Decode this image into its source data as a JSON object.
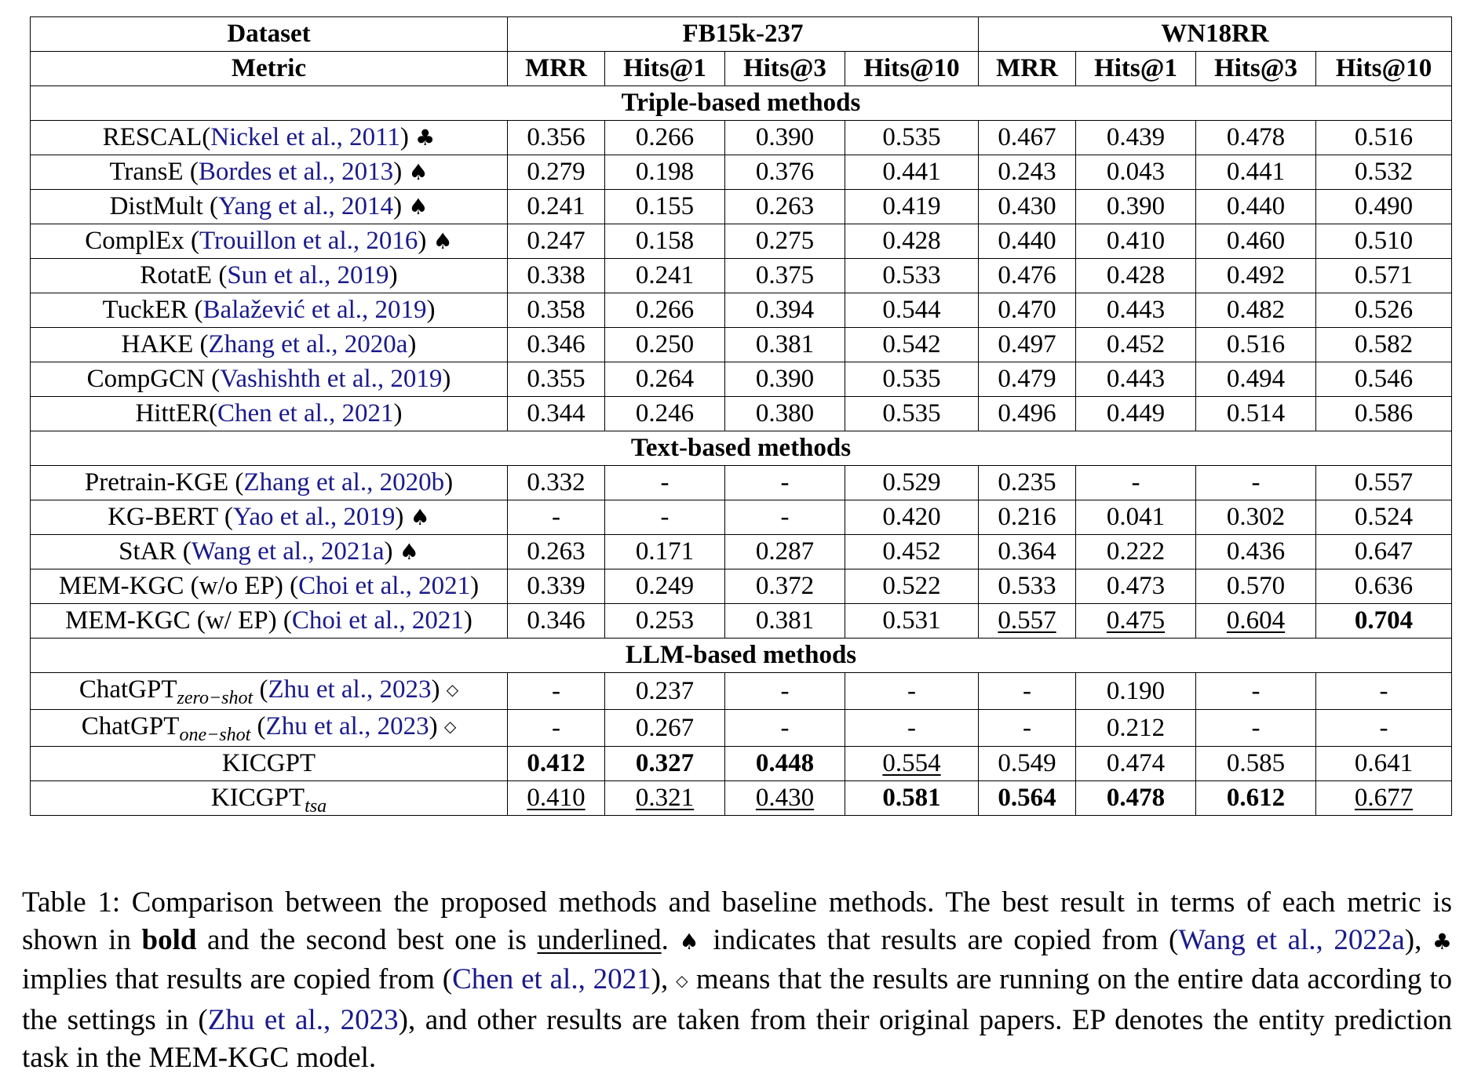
{
  "header": {
    "dataset_label": "Dataset",
    "metric_label": "Metric",
    "groups": [
      "FB15k-237",
      "WN18RR"
    ],
    "metrics": [
      "MRR",
      "Hits@1",
      "Hits@3",
      "Hits@10",
      "MRR",
      "Hits@1",
      "Hits@3",
      "Hits@10"
    ]
  },
  "sections": [
    {
      "title": "Triple-based methods",
      "rows": [
        {
          "name": "RESCAL(",
          "cite": "Nickel et al., 2011",
          "close": ")",
          "sup": "",
          "mark": "♣",
          "values": [
            {
              "v": "0.356"
            },
            {
              "v": "0.266"
            },
            {
              "v": "0.390"
            },
            {
              "v": "0.535"
            },
            {
              "v": "0.467"
            },
            {
              "v": "0.439"
            },
            {
              "v": "0.478"
            },
            {
              "v": "0.516"
            }
          ]
        },
        {
          "name": "TransE (",
          "cite": "Bordes et al., 2013",
          "close": ")",
          "sup": "",
          "mark": "♠",
          "values": [
            {
              "v": "0.279"
            },
            {
              "v": "0.198"
            },
            {
              "v": "0.376"
            },
            {
              "v": "0.441"
            },
            {
              "v": "0.243"
            },
            {
              "v": "0.043"
            },
            {
              "v": "0.441"
            },
            {
              "v": "0.532"
            }
          ]
        },
        {
          "name": "DistMult (",
          "cite": "Yang et al., 2014",
          "close": ")",
          "sup": "",
          "mark": "♠",
          "values": [
            {
              "v": "0.241"
            },
            {
              "v": "0.155"
            },
            {
              "v": "0.263"
            },
            {
              "v": "0.419"
            },
            {
              "v": "0.430"
            },
            {
              "v": "0.390"
            },
            {
              "v": "0.440"
            },
            {
              "v": "0.490"
            }
          ]
        },
        {
          "name": "ComplEx (",
          "cite": "Trouillon et al., 2016",
          "close": ")",
          "sup": "",
          "mark": "♠",
          "values": [
            {
              "v": "0.247"
            },
            {
              "v": "0.158"
            },
            {
              "v": "0.275"
            },
            {
              "v": "0.428"
            },
            {
              "v": "0.440"
            },
            {
              "v": "0.410"
            },
            {
              "v": "0.460"
            },
            {
              "v": "0.510"
            }
          ]
        },
        {
          "name": "RotatE (",
          "cite": "Sun et al., 2019",
          "close": ")",
          "sup": "",
          "mark": "",
          "values": [
            {
              "v": "0.338"
            },
            {
              "v": "0.241"
            },
            {
              "v": "0.375"
            },
            {
              "v": "0.533"
            },
            {
              "v": "0.476"
            },
            {
              "v": "0.428"
            },
            {
              "v": "0.492"
            },
            {
              "v": "0.571"
            }
          ]
        },
        {
          "name": "TuckER (",
          "cite": "Balažević et al., 2019",
          "close": ")",
          "sup": "",
          "mark": "",
          "values": [
            {
              "v": "0.358"
            },
            {
              "v": "0.266"
            },
            {
              "v": "0.394"
            },
            {
              "v": "0.544"
            },
            {
              "v": "0.470"
            },
            {
              "v": "0.443"
            },
            {
              "v": "0.482"
            },
            {
              "v": "0.526"
            }
          ]
        },
        {
          "name": "HAKE (",
          "cite": "Zhang et al., 2020a",
          "close": ")",
          "sup": "",
          "mark": "",
          "values": [
            {
              "v": "0.346"
            },
            {
              "v": "0.250"
            },
            {
              "v": "0.381"
            },
            {
              "v": "0.542"
            },
            {
              "v": "0.497"
            },
            {
              "v": "0.452"
            },
            {
              "v": "0.516"
            },
            {
              "v": "0.582"
            }
          ]
        },
        {
          "name": "CompGCN (",
          "cite": "Vashishth et al., 2019",
          "close": ")",
          "sup": "",
          "mark": "",
          "values": [
            {
              "v": "0.355"
            },
            {
              "v": "0.264"
            },
            {
              "v": "0.390"
            },
            {
              "v": "0.535"
            },
            {
              "v": "0.479"
            },
            {
              "v": "0.443"
            },
            {
              "v": "0.494"
            },
            {
              "v": "0.546"
            }
          ]
        },
        {
          "name": "HittER(",
          "cite": "Chen et al., 2021",
          "close": ")",
          "sup": "",
          "mark": "",
          "values": [
            {
              "v": "0.344"
            },
            {
              "v": "0.246"
            },
            {
              "v": "0.380"
            },
            {
              "v": "0.535"
            },
            {
              "v": "0.496"
            },
            {
              "v": "0.449"
            },
            {
              "v": "0.514"
            },
            {
              "v": "0.586"
            }
          ]
        }
      ]
    },
    {
      "title": "Text-based methods",
      "rows": [
        {
          "name": "Pretrain-KGE (",
          "cite": "Zhang et al., 2020b",
          "close": ")",
          "sup": "",
          "mark": "",
          "values": [
            {
              "v": "0.332"
            },
            {
              "v": "-"
            },
            {
              "v": "-"
            },
            {
              "v": "0.529"
            },
            {
              "v": "0.235"
            },
            {
              "v": "-"
            },
            {
              "v": "-"
            },
            {
              "v": "0.557"
            }
          ]
        },
        {
          "name": "KG-BERT (",
          "cite": "Yao et al., 2019",
          "close": ")",
          "sup": "",
          "mark": "♠",
          "values": [
            {
              "v": "-"
            },
            {
              "v": "-"
            },
            {
              "v": "-"
            },
            {
              "v": "0.420"
            },
            {
              "v": "0.216"
            },
            {
              "v": "0.041"
            },
            {
              "v": "0.302"
            },
            {
              "v": "0.524"
            }
          ]
        },
        {
          "name": "StAR (",
          "cite": "Wang et al., 2021a",
          "close": ")",
          "sup": "",
          "mark": "♠",
          "values": [
            {
              "v": "0.263"
            },
            {
              "v": "0.171"
            },
            {
              "v": "0.287"
            },
            {
              "v": "0.452"
            },
            {
              "v": "0.364"
            },
            {
              "v": "0.222"
            },
            {
              "v": "0.436"
            },
            {
              "v": "0.647"
            }
          ]
        },
        {
          "name": "MEM-KGC (w/o EP) (",
          "cite": "Choi et al., 2021",
          "close": ")",
          "sup": "",
          "mark": "",
          "values": [
            {
              "v": "0.339"
            },
            {
              "v": "0.249"
            },
            {
              "v": "0.372"
            },
            {
              "v": "0.522"
            },
            {
              "v": "0.533"
            },
            {
              "v": "0.473"
            },
            {
              "v": "0.570"
            },
            {
              "v": "0.636"
            }
          ]
        },
        {
          "name": "MEM-KGC (w/ EP) (",
          "cite": "Choi et al., 2021",
          "close": ")",
          "sup": "",
          "mark": "",
          "values": [
            {
              "v": "0.346"
            },
            {
              "v": "0.253"
            },
            {
              "v": "0.381"
            },
            {
              "v": "0.531"
            },
            {
              "v": "0.557",
              "s": "u"
            },
            {
              "v": "0.475",
              "s": "u"
            },
            {
              "v": "0.604",
              "s": "u"
            },
            {
              "v": "0.704",
              "s": "b"
            }
          ]
        }
      ]
    },
    {
      "title": "LLM-based methods",
      "rows": [
        {
          "name": "ChatGPT",
          "sup": "zero−shot",
          "cite": "Zhu et al., 2023",
          "pre": " (",
          "close": ")",
          "mark": "◇",
          "values": [
            {
              "v": "-"
            },
            {
              "v": "0.237"
            },
            {
              "v": "-"
            },
            {
              "v": "-"
            },
            {
              "v": "-"
            },
            {
              "v": "0.190"
            },
            {
              "v": "-"
            },
            {
              "v": "-"
            }
          ]
        },
        {
          "name": "ChatGPT",
          "sup": "one−shot",
          "cite": "Zhu et al., 2023",
          "pre": " (",
          "close": ")",
          "mark": "◇",
          "values": [
            {
              "v": "-"
            },
            {
              "v": "0.267"
            },
            {
              "v": "-"
            },
            {
              "v": "-"
            },
            {
              "v": "-"
            },
            {
              "v": "0.212"
            },
            {
              "v": "-"
            },
            {
              "v": "-"
            }
          ]
        },
        {
          "name": "KICGPT",
          "sup": "",
          "cite": "",
          "close": "",
          "mark": "",
          "values": [
            {
              "v": "0.412",
              "s": "b"
            },
            {
              "v": "0.327",
              "s": "b"
            },
            {
              "v": "0.448",
              "s": "b"
            },
            {
              "v": "0.554",
              "s": "u"
            },
            {
              "v": "0.549"
            },
            {
              "v": "0.474"
            },
            {
              "v": "0.585"
            },
            {
              "v": "0.641"
            }
          ]
        },
        {
          "name": "KICGPT",
          "sup": "tsa",
          "cite": "",
          "close": "",
          "mark": "",
          "values": [
            {
              "v": "0.410",
              "s": "u"
            },
            {
              "v": "0.321",
              "s": "u"
            },
            {
              "v": "0.430",
              "s": "u"
            },
            {
              "v": "0.581",
              "s": "b"
            },
            {
              "v": "0.564",
              "s": "b"
            },
            {
              "v": "0.478",
              "s": "b"
            },
            {
              "v": "0.612",
              "s": "b"
            },
            {
              "v": "0.677",
              "s": "u"
            }
          ]
        }
      ]
    }
  ],
  "caption": {
    "t1": "Table 1: Comparison between the proposed methods and baseline methods. The best result in terms of each metric is shown in ",
    "bold_word": "bold",
    "t2": " and the second best one is ",
    "underlined_word": "underlined",
    "t3": ". ",
    "spade": "♠",
    "t4": " indicates that results are copied from (",
    "cite1": "Wang et al., 2022a",
    "t5": "), ",
    "club": "♣",
    "t6": " implies that results are copied from (",
    "cite2": "Chen et al., 2021",
    "t7": "), ",
    "diamond": "◇",
    "t8": " means that the results are running on the entire data according to the settings in (",
    "cite3": "Zhu et al., 2023",
    "t9": "), and other results are taken from their original papers. EP denotes the entity prediction task in the MEM-KGC model."
  }
}
